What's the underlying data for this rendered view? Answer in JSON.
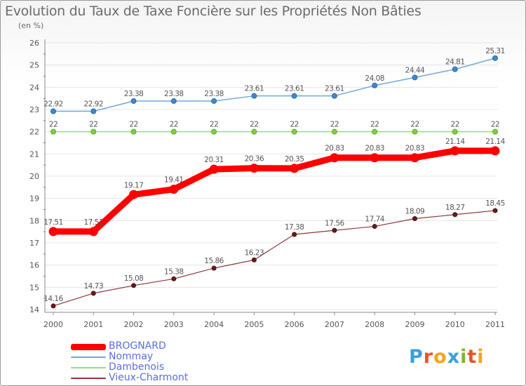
{
  "header": {
    "title": "Evolution du Taux de Taxe Foncière sur les Propriétés Non Bâties",
    "unit": "(en %)"
  },
  "logo": {
    "text": "Proxiti",
    "letter_colors": [
      "#3aa0d8",
      "#e8552a",
      "#f4a41c",
      "#3aa0d8",
      "#7cb82f",
      "#e8552a",
      "#f4a41c"
    ]
  },
  "chart_data": {
    "type": "line",
    "title": "Evolution du Taux de Taxe Foncière sur les Propriétés Non Bâties",
    "ylabel": "(en %)",
    "xlabel": "",
    "x": [
      "2000",
      "2001",
      "2002",
      "2003",
      "2004",
      "2005",
      "2006",
      "2007",
      "2008",
      "2009",
      "2010",
      "2011"
    ],
    "ylim": [
      14,
      26
    ],
    "yticks": [
      "14",
      "15",
      "16",
      "17",
      "18",
      "19",
      "20",
      "21",
      "22",
      "23",
      "24",
      "25",
      "26"
    ],
    "grid": "horizontal",
    "legend_position": "bottom-left",
    "series": [
      {
        "name": "BROGNARD",
        "color": "#ff0000",
        "values": [
          17.51,
          17.51,
          19.17,
          19.41,
          20.31,
          20.36,
          20.35,
          20.83,
          20.83,
          20.83,
          21.14,
          21.14
        ],
        "labels": [
          "17.51",
          "17.51",
          "19.17",
          "19.41",
          "20.31",
          "20.36",
          "20.35",
          "20.83",
          "20.83",
          "20.83",
          "21.14",
          "21.14"
        ]
      },
      {
        "name": "Nommay",
        "color": "#70a8d8",
        "values": [
          22.92,
          22.92,
          23.38,
          23.38,
          23.38,
          23.61,
          23.61,
          23.61,
          24.08,
          24.44,
          24.81,
          25.31
        ],
        "labels": [
          "22.92",
          "22.92",
          "23.38",
          "23.38",
          "23.38",
          "23.61",
          "23.61",
          "23.61",
          "24.08",
          "24.44",
          "24.81",
          "25.31"
        ]
      },
      {
        "name": "Dambenois",
        "color": "#99dd66",
        "values": [
          22,
          22,
          22,
          22,
          22,
          22,
          22,
          22,
          22,
          22,
          22,
          22
        ],
        "labels": [
          "22",
          "22",
          "22",
          "22",
          "22",
          "22",
          "22",
          "22",
          "22",
          "22",
          "22",
          "22"
        ]
      },
      {
        "name": "Vieux-Charmont",
        "color": "#8b3a3a",
        "values": [
          14.16,
          14.73,
          15.08,
          15.38,
          15.86,
          16.23,
          17.38,
          17.56,
          17.74,
          18.09,
          18.27,
          18.45
        ],
        "labels": [
          "14.16",
          "14.73",
          "15.08",
          "15.38",
          "15.86",
          "16.23",
          "17.38",
          "17.56",
          "17.74",
          "18.09",
          "18.27",
          "18.45"
        ]
      }
    ]
  }
}
